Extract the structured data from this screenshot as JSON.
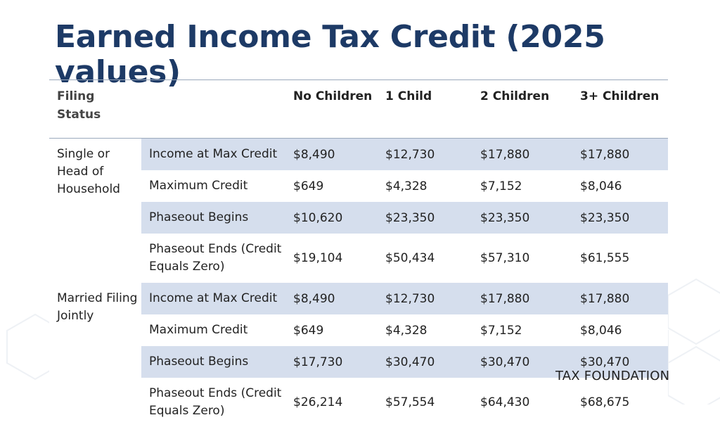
{
  "title": "Earned Income Tax Credit (2025 values)",
  "brand": "TAX FOUNDATION",
  "colors": {
    "title": "#1d3a66",
    "band": "#d5deed",
    "rule": "#9aa8bc"
  },
  "table": {
    "headers": [
      "Filing Status",
      "",
      "No Children",
      "1 Child",
      "2 Children",
      "3+ Children"
    ],
    "groups": [
      {
        "status": "Single or Head of Household",
        "rows": [
          {
            "label": "Income at Max Credit",
            "values": [
              "$8,490",
              "$12,730",
              "$17,880",
              "$17,880"
            ]
          },
          {
            "label": "Maximum Credit",
            "values": [
              "$649",
              "$4,328",
              "$7,152",
              "$8,046"
            ]
          },
          {
            "label": "Phaseout Begins",
            "values": [
              "$10,620",
              "$23,350",
              "$23,350",
              "$23,350"
            ]
          },
          {
            "label": "Phaseout Ends (Credit Equals Zero)",
            "values": [
              "$19,104",
              "$50,434",
              "$57,310",
              "$61,555"
            ]
          }
        ]
      },
      {
        "status": "Married Filing Jointly",
        "rows": [
          {
            "label": "Income at Max Credit",
            "values": [
              "$8,490",
              "$12,730",
              "$17,880",
              "$17,880"
            ]
          },
          {
            "label": "Maximum Credit",
            "values": [
              "$649",
              "$4,328",
              "$7,152",
              "$8,046"
            ]
          },
          {
            "label": "Phaseout Begins",
            "values": [
              "$17,730",
              "$30,470",
              "$30,470",
              "$30,470"
            ]
          },
          {
            "label": "Phaseout Ends (Credit Equals Zero)",
            "values": [
              "$26,214",
              "$57,554",
              "$64,430",
              "$68,675"
            ]
          }
        ]
      }
    ]
  }
}
